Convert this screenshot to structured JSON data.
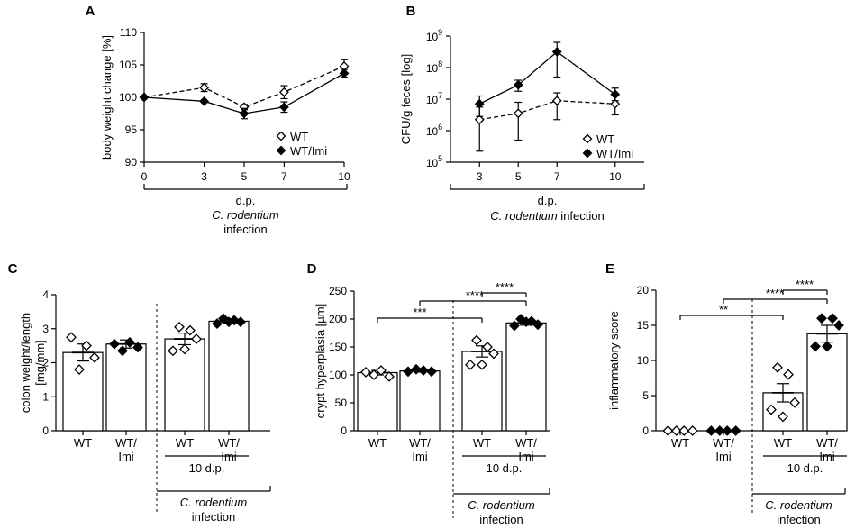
{
  "chart_data": [
    {
      "panel": "A",
      "type": "line",
      "ylabel": "body weight change [%]",
      "ylim": [
        90,
        110
      ],
      "yticks": [
        "90",
        "95",
        "100",
        "105",
        "110"
      ],
      "x": [
        0,
        3,
        5,
        7,
        10
      ],
      "xticks": [
        "0",
        "3",
        "5",
        "7",
        "10"
      ],
      "xlabel_lines": [
        "d.p.",
        "C. rodentium",
        "infection"
      ],
      "legend": "bottom-right",
      "series": [
        {
          "name": "WT",
          "marker": "open-diamond",
          "dash": true,
          "values": [
            100,
            101.5,
            98.5,
            100.8,
            104.8
          ],
          "err": [
            0,
            0.6,
            0.4,
            1.0,
            1.0
          ]
        },
        {
          "name": "WT/Imi",
          "marker": "filled-diamond",
          "dash": false,
          "values": [
            100,
            99.4,
            97.5,
            98.5,
            103.7
          ],
          "err": [
            0,
            0,
            0.8,
            0.8,
            0.6
          ]
        }
      ]
    },
    {
      "panel": "B",
      "type": "line",
      "ylabel": "CFU/g feces [log]",
      "yscale": "log",
      "ylim_exp": [
        5,
        9
      ],
      "yticks": [
        {
          "base": "10",
          "exp": "5"
        },
        {
          "base": "10",
          "exp": "6"
        },
        {
          "base": "10",
          "exp": "7"
        },
        {
          "base": "10",
          "exp": "8"
        },
        {
          "base": "10",
          "exp": "9"
        }
      ],
      "x": [
        3,
        5,
        7,
        10
      ],
      "xticks": [
        "3",
        "5",
        "7",
        "10"
      ],
      "xlabel_lines": [
        "d.p."
      ],
      "xlabel_italic": "C. rodentium",
      "xlabel_rest": " infection",
      "legend": "bottom-right",
      "series": [
        {
          "name": "WT",
          "marker": "open-diamond",
          "dash": true,
          "log_values": [
            6.35,
            6.55,
            6.95,
            6.85
          ],
          "log_err_low": [
            1.0,
            0.85,
            0.6,
            0.35
          ],
          "log_err_high": [
            0.4,
            0.35,
            0.25,
            0.25
          ]
        },
        {
          "name": "WT/Imi",
          "marker": "filled-diamond",
          "dash": false,
          "log_values": [
            6.85,
            7.45,
            8.5,
            7.15
          ],
          "log_err_low": [
            0.4,
            0.2,
            0.8,
            0.2
          ],
          "log_err_high": [
            0.25,
            0.15,
            0.3,
            0.2
          ]
        }
      ]
    },
    {
      "panel": "C",
      "type": "bar",
      "ylabel_lines": [
        "colon weight/length",
        "[mg/mm]"
      ],
      "ylim": [
        0,
        4
      ],
      "yticks": [
        "0",
        "1",
        "2",
        "3",
        "4"
      ],
      "groups": [
        {
          "label": [
            "WT"
          ],
          "mean": 2.3,
          "sem": 0.25,
          "filled": false,
          "points": [
            2.75,
            2.5,
            2.15,
            1.8
          ]
        },
        {
          "label": [
            "WT/",
            "Imi"
          ],
          "mean": 2.55,
          "sem": 0.12,
          "filled": true,
          "points": [
            2.55,
            2.6,
            2.45,
            2.35
          ]
        },
        {
          "label": [
            "WT"
          ],
          "mean": 2.7,
          "sem": 0.17,
          "filled": false,
          "points": [
            3.05,
            2.95,
            2.7,
            2.35,
            2.4
          ]
        },
        {
          "label": [
            "WT/",
            "Imi"
          ],
          "mean": 3.22,
          "sem": 0.05,
          "filled": true,
          "points": [
            3.3,
            3.25,
            3.2,
            3.15,
            3.2
          ]
        }
      ],
      "brackets": [],
      "subgroup_label": "10 d.p.",
      "infection_italic": "C. rodentium",
      "infection_rest": "infection"
    },
    {
      "panel": "D",
      "type": "bar",
      "ylabel": "crypt hyperplasia [µm]",
      "ylim": [
        0,
        250
      ],
      "yticks": [
        "0",
        "50",
        "100",
        "150",
        "200",
        "250"
      ],
      "groups": [
        {
          "label": [
            "WT"
          ],
          "mean": 104,
          "sem": 4,
          "filled": false,
          "points": [
            105,
            108,
            97,
            100
          ]
        },
        {
          "label": [
            "WT/",
            "Imi"
          ],
          "mean": 107,
          "sem": 2,
          "filled": true,
          "points": [
            106,
            108,
            106,
            110
          ]
        },
        {
          "label": [
            "WT"
          ],
          "mean": 142,
          "sem": 10,
          "filled": false,
          "points": [
            162,
            150,
            138,
            118,
            118
          ]
        },
        {
          "label": [
            "WT/",
            "Imi"
          ],
          "mean": 193,
          "sem": 4,
          "filled": true,
          "points": [
            200,
            196,
            190,
            188,
            195
          ]
        }
      ],
      "brackets": [
        {
          "from": 0,
          "to": 2,
          "text": "***"
        },
        {
          "from": 1,
          "to": 3,
          "text": "****"
        },
        {
          "from": 2,
          "to": 3,
          "text": "****"
        }
      ],
      "subgroup_label": "10 d.p.",
      "infection_italic": "C. rodentium",
      "infection_rest": "infection"
    },
    {
      "panel": "E",
      "type": "bar",
      "ylabel": "inflammatory score",
      "ylim": [
        0,
        20
      ],
      "yticks": [
        "0",
        "5",
        "10",
        "15",
        "20"
      ],
      "groups": [
        {
          "label": [
            "WT"
          ],
          "mean": 0,
          "sem": 0,
          "filled": false,
          "points": [
            0,
            0,
            0,
            0
          ]
        },
        {
          "label": [
            "WT/",
            "Imi"
          ],
          "mean": 0,
          "sem": 0,
          "filled": true,
          "points": [
            0,
            0,
            0,
            0
          ]
        },
        {
          "label": [
            "WT"
          ],
          "mean": 5.4,
          "sem": 1.3,
          "filled": false,
          "points": [
            9,
            8,
            4,
            3,
            2
          ]
        },
        {
          "label": [
            "WT/",
            "Imi"
          ],
          "mean": 13.8,
          "sem": 1.2,
          "filled": true,
          "points": [
            16,
            16,
            15,
            12,
            12
          ]
        }
      ],
      "brackets": [
        {
          "from": 0,
          "to": 2,
          "text": "**"
        },
        {
          "from": 1,
          "to": 3,
          "text": "****"
        },
        {
          "from": 2,
          "to": 3,
          "text": "****"
        }
      ],
      "subgroup_label": "10 d.p.",
      "infection_italic": "C. rodentium",
      "infection_rest": "infection"
    }
  ]
}
